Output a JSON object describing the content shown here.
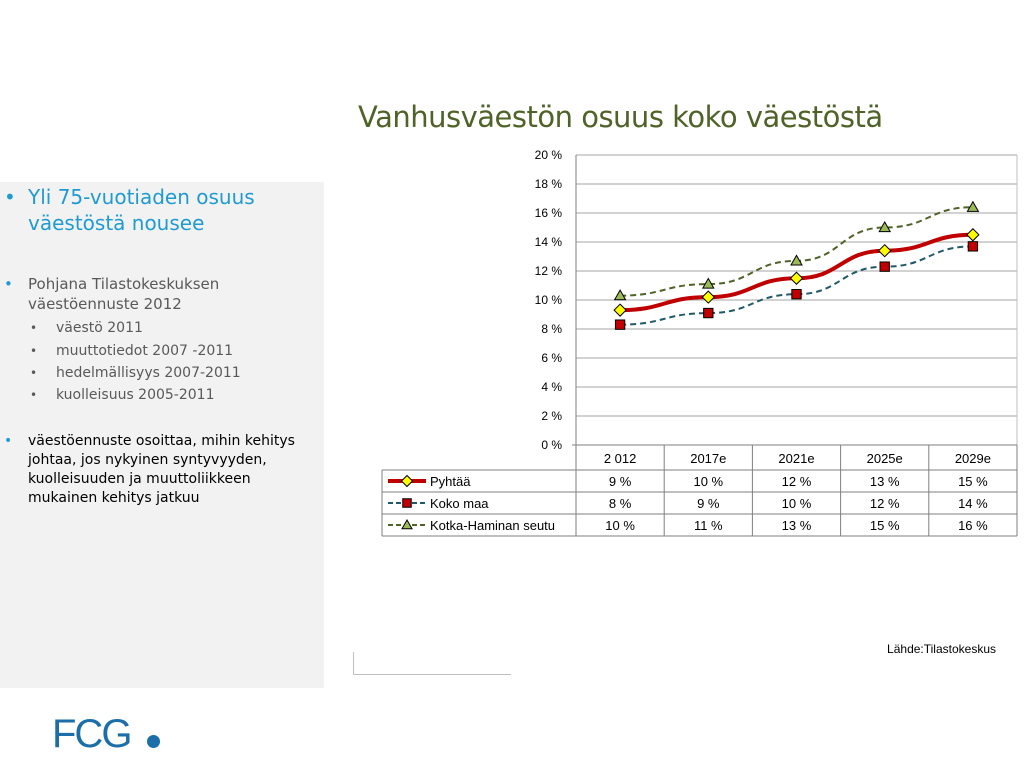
{
  "sidebar": {
    "headline": "Yli 75-vuotiaden osuus väestöstä nousee",
    "basis": "Pohjana Tilastokeskuksen väestöennuste 2012",
    "sub_items": [
      "väestö 2011",
      "muuttotiedot 2007 -2011",
      "hedelmällisyys 2007-2011",
      "kuolleisuus 2005-2011"
    ],
    "conclusion": "väestöennuste osoittaa, mihin kehitys johtaa, jos nykyinen syntyvyyden, kuolleisuuden ja muuttoliikkeen mukainen kehitys jatkuu"
  },
  "source": "Lähde:Tilastokeskus",
  "logo": "FCG",
  "colors": {
    "accent": "#1f9bd1",
    "title": "#4f6228",
    "logo": "#1b6ea8"
  },
  "chart_data": {
    "type": "line",
    "title": "Vanhusväestön osuus koko väestöstä",
    "categories": [
      "2 012",
      "2017e",
      "2021e",
      "2025e",
      "2029e"
    ],
    "ylim": [
      0,
      20
    ],
    "yticks": [
      "0 %",
      "2 %",
      "4 %",
      "6 %",
      "8 %",
      "10 %",
      "12 %",
      "14 %",
      "16 %",
      "18 %",
      "20 %"
    ],
    "grid": true,
    "legend": "data-table",
    "series": [
      {
        "name": "Pyhtää",
        "values": [
          9.3,
          10.2,
          11.5,
          13.4,
          14.5
        ],
        "labels": [
          "9 %",
          "10 %",
          "12 %",
          "13 %",
          "15 %"
        ],
        "color": "#c00000",
        "marker": "diamond",
        "marker_color": "#ffff00",
        "dash": "solid"
      },
      {
        "name": "Koko maa",
        "values": [
          8.3,
          9.1,
          10.4,
          12.3,
          13.7
        ],
        "labels": [
          "8 %",
          "9 %",
          "10 %",
          "12 %",
          "14 %"
        ],
        "color": "#215968",
        "marker": "square",
        "marker_color": "#c00000",
        "dash": "dashed"
      },
      {
        "name": "Kotka-Haminan seutu",
        "values": [
          10.3,
          11.1,
          12.7,
          15.0,
          16.4
        ],
        "labels": [
          "10 %",
          "11 %",
          "13 %",
          "15 %",
          "16 %"
        ],
        "color": "#4f6228",
        "marker": "triangle",
        "marker_color": "#9bbb59",
        "dash": "dashed"
      }
    ]
  }
}
